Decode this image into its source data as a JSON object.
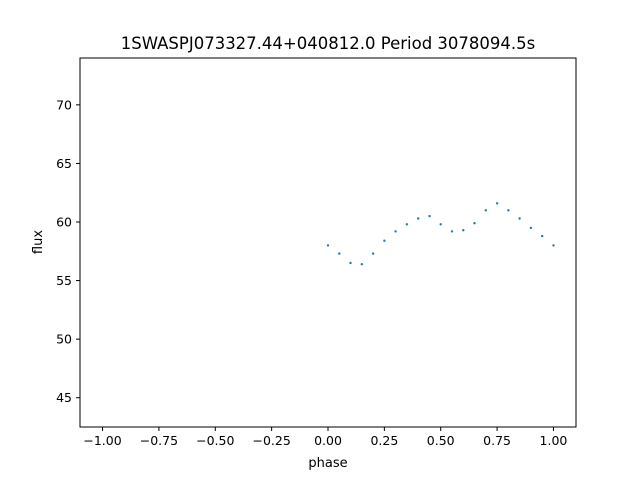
{
  "chart_data": {
    "type": "scatter",
    "title": "1SWASPJ073327.44+040812.0 Period 3078094.5s",
    "xlabel": "phase",
    "ylabel": "flux",
    "xlim": [
      -1.1,
      1.1
    ],
    "ylim": [
      42.5,
      74.0
    ],
    "x_ticks": [
      -1.0,
      -0.75,
      -0.5,
      -0.25,
      0.0,
      0.25,
      0.5,
      0.75,
      1.0
    ],
    "x_tick_labels": [
      "−1.00",
      "−0.75",
      "−0.50",
      "−0.25",
      "0.00",
      "0.25",
      "0.50",
      "0.75",
      "1.00"
    ],
    "y_ticks": [
      45,
      50,
      55,
      60,
      65,
      70
    ],
    "y_tick_labels": [
      "45",
      "50",
      "55",
      "60",
      "65",
      "70"
    ],
    "grid": false,
    "point_color": "#1f77b4",
    "series": [
      {
        "x": [
          0.0,
          0.05,
          0.1,
          0.15,
          0.2,
          0.25,
          0.3,
          0.35,
          0.4,
          0.45,
          0.5,
          0.55,
          0.6,
          0.65,
          0.7,
          0.75,
          0.8,
          0.85,
          0.9,
          0.95,
          1.0
        ],
        "y": [
          58.0,
          57.3,
          56.5,
          56.4,
          57.3,
          58.4,
          59.2,
          59.8,
          60.3,
          60.5,
          59.8,
          59.2,
          59.3,
          59.9,
          61.0,
          61.6,
          61.0,
          60.3,
          59.5,
          58.8,
          58.0
        ]
      }
    ]
  }
}
